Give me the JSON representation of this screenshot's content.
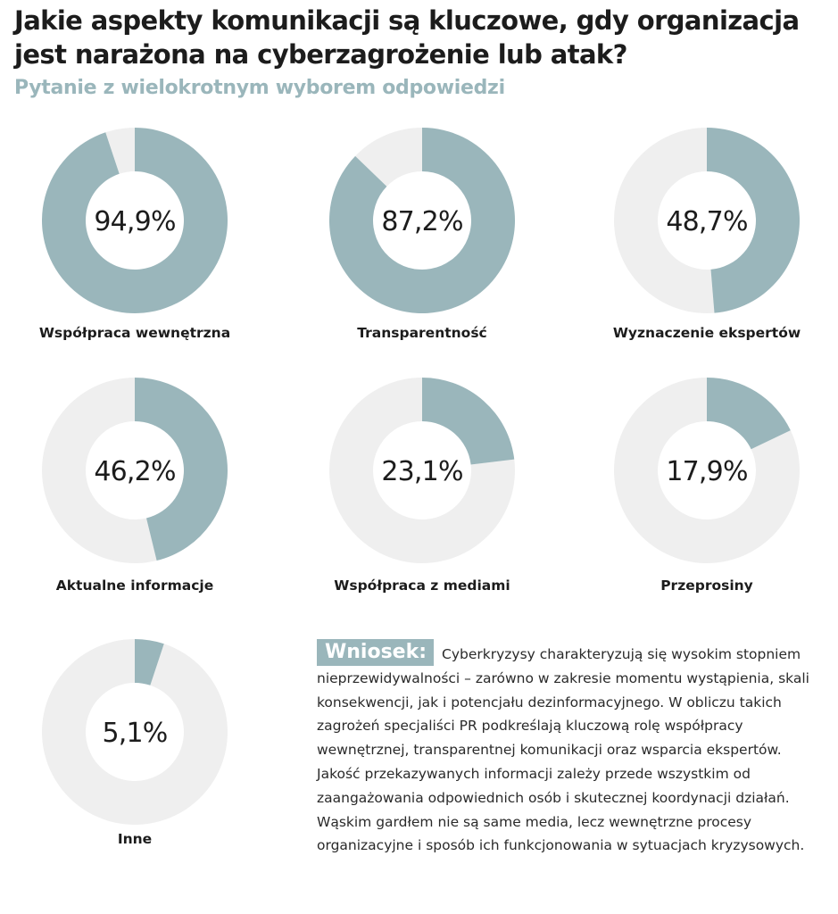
{
  "header": {
    "title": "Jakie aspekty komunikacji są kluczowe, gdy organizacja jest narażona na cyberzagrożenie lub atak?",
    "subtitle": "Pytanie z wielokrotnym wyborem odpowiedzi"
  },
  "colors": {
    "accent": "#9ab6bb",
    "track": "#efefef",
    "text": "#1c1c1c"
  },
  "chart_data": {
    "type": "pie",
    "variant": "donut",
    "title": "Jakie aspekty komunikacji są kluczowe, gdy organizacja jest narażona na cyberzagrożenie lub atak?",
    "subtitle": "Pytanie z wielokrotnym wyborem odpowiedzi",
    "unit": "%",
    "categories": [
      "Współpraca wewnętrzna",
      "Transparentność",
      "Wyznaczenie ekspertów",
      "Aktualne informacje",
      "Współpraca z mediami",
      "Przeprosiny",
      "Inne"
    ],
    "values": [
      94.9,
      87.2,
      48.7,
      46.2,
      23.1,
      17.9,
      5.1
    ],
    "value_labels": [
      "94,9%",
      "87,2%",
      "48,7%",
      "46,2%",
      "23,1%",
      "17,9%",
      "5,1%"
    ]
  },
  "conclusion": {
    "label": "Wniosek:",
    "text": "Cyberkryzysy charakteryzują się wysokim stopniem nieprzewidywalności – zarówno w zakresie momentu wystąpienia, skali konsekwencji, jak i potencjału dezinformacyjnego. W obliczu takich zagrożeń specjaliści PR podkreślają kluczową rolę współpracy wewnętrznej, transparentnej komunikacji oraz wsparcia ekspertów. Jakość przekazywanych informacji zależy przede wszystkim od zaangażowania odpowiednich osób i skutecznej koordynacji działań. Wąskim gardłem nie są same media, lecz wewnętrzne procesy organizacyjne i sposób ich funkcjonowania w sytuacjach kryzysowych."
  }
}
